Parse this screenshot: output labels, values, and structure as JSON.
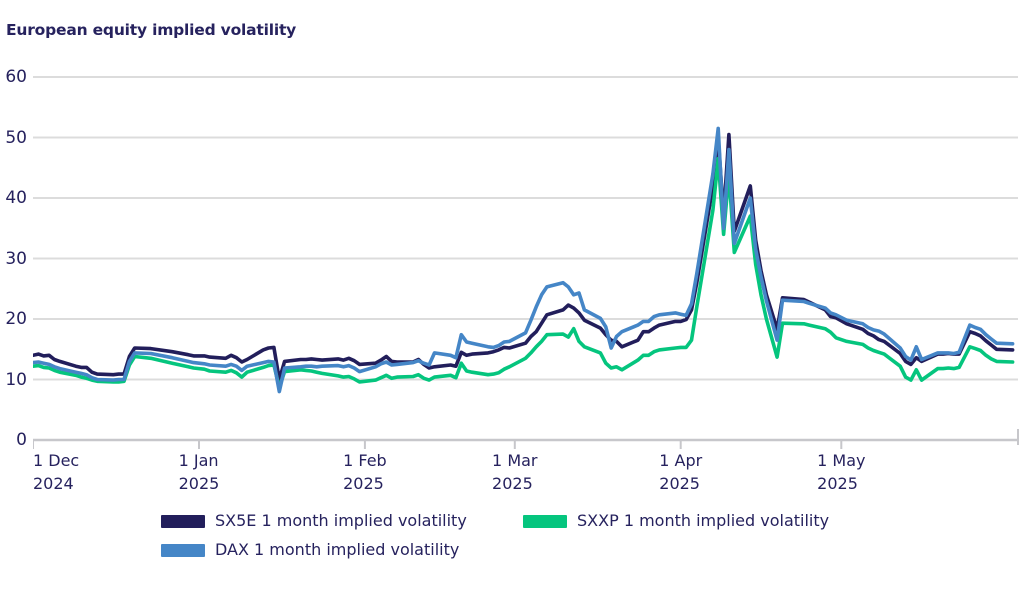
{
  "title": "European equity implied volatility",
  "chart_data": {
    "type": "line",
    "title": "European equity implied volatility",
    "x_unit": "days since 1 Dec 2024",
    "x_domain": [
      0,
      184
    ],
    "y_domain": [
      0,
      60
    ],
    "y_ticks": [
      0,
      10,
      20,
      30,
      40,
      50,
      60
    ],
    "x_ticks": [
      {
        "label": "1 Dec",
        "year": "2024",
        "day": 0
      },
      {
        "label": "1 Jan",
        "year": "2025",
        "day": 31
      },
      {
        "label": "1 Feb",
        "year": "2025",
        "day": 62
      },
      {
        "label": "1 Mar",
        "year": "2025",
        "day": 90
      },
      {
        "label": "1 Apr",
        "year": "2025",
        "day": 121
      },
      {
        "label": "1 May",
        "year": "2025",
        "day": 151
      }
    ],
    "grid": true,
    "legend_position": "bottom",
    "colors": {
      "grid": "#dcdcdc",
      "axis": "#c7c7cb",
      "text": "#26225e"
    },
    "x": [
      0,
      1,
      2,
      3,
      4,
      5,
      8,
      9,
      10,
      11,
      12,
      15,
      16,
      17,
      18,
      19,
      22,
      26,
      29,
      30,
      32,
      33,
      36,
      37,
      38,
      39,
      40,
      43,
      44,
      45,
      46,
      47,
      50,
      51,
      52,
      53,
      54,
      57,
      58,
      59,
      60,
      61,
      64,
      65,
      66,
      67,
      68,
      71,
      72,
      73,
      74,
      75,
      78,
      79,
      80,
      81,
      82,
      85,
      86,
      87,
      88,
      89,
      92,
      93,
      94,
      95,
      96,
      99,
      100,
      101,
      102,
      103,
      106,
      107,
      108,
      109,
      110,
      113,
      114,
      115,
      116,
      117,
      120,
      121,
      122,
      123,
      124,
      127,
      128,
      129,
      130,
      131,
      134,
      135,
      136,
      137,
      139,
      140,
      144,
      145,
      148,
      149,
      150,
      152,
      155,
      156,
      157,
      158,
      159,
      162,
      163,
      164,
      165,
      166,
      169,
      170,
      171,
      172,
      173,
      175,
      176,
      177,
      178,
      179,
      180,
      183
    ],
    "series": [
      {
        "name": "SX5E",
        "label": "SX5E 1 month implied volatility",
        "color": "#221e5b",
        "values": [
          14.0,
          14.2,
          13.9,
          14.0,
          13.3,
          13.0,
          12.2,
          12.0,
          12.0,
          11.2,
          10.9,
          10.8,
          10.9,
          10.9,
          13.8,
          15.2,
          15.1,
          14.6,
          14.1,
          13.9,
          13.9,
          13.7,
          13.5,
          14.0,
          13.6,
          12.9,
          13.3,
          14.9,
          15.2,
          15.3,
          10.0,
          13.0,
          13.3,
          13.3,
          13.4,
          13.3,
          13.2,
          13.4,
          13.2,
          13.5,
          13.1,
          12.5,
          12.7,
          13.2,
          13.8,
          13.0,
          12.9,
          12.9,
          13.3,
          12.5,
          11.9,
          12.1,
          12.4,
          12.2,
          14.5,
          14.0,
          14.2,
          14.4,
          14.6,
          14.9,
          15.3,
          15.2,
          16.0,
          17.1,
          17.9,
          19.3,
          20.7,
          21.5,
          22.3,
          21.8,
          21.0,
          19.8,
          18.5,
          17.4,
          16.5,
          16.3,
          15.4,
          16.5,
          17.9,
          17.9,
          18.5,
          19.0,
          19.6,
          19.6,
          19.9,
          21.5,
          26.0,
          42.0,
          50.0,
          37.0,
          50.5,
          34.5,
          42.0,
          33.0,
          28.0,
          24.0,
          18.3,
          23.5,
          23.2,
          22.8,
          21.5,
          20.4,
          20.2,
          19.2,
          18.3,
          17.6,
          17.2,
          16.6,
          16.3,
          14.3,
          13.0,
          12.5,
          13.6,
          13.0,
          14.2,
          14.2,
          14.3,
          14.2,
          14.2,
          17.9,
          17.6,
          17.2,
          16.4,
          15.7,
          15.0,
          14.9
        ]
      },
      {
        "name": "SXXP",
        "label": "SXXP 1 month implied volatility",
        "color": "#05c57e",
        "values": [
          12.2,
          12.3,
          12.0,
          11.9,
          11.5,
          11.2,
          10.7,
          10.4,
          10.2,
          9.9,
          9.7,
          9.6,
          9.6,
          9.7,
          12.4,
          13.8,
          13.5,
          12.7,
          12.1,
          11.9,
          11.7,
          11.4,
          11.2,
          11.5,
          11.1,
          10.4,
          11.2,
          12.0,
          12.3,
          12.4,
          8.7,
          11.3,
          11.6,
          11.5,
          11.4,
          11.2,
          11.0,
          10.6,
          10.4,
          10.5,
          10.1,
          9.6,
          9.9,
          10.3,
          10.7,
          10.2,
          10.4,
          10.5,
          10.8,
          10.2,
          9.9,
          10.4,
          10.7,
          10.3,
          12.7,
          11.4,
          11.2,
          10.8,
          10.9,
          11.1,
          11.7,
          12.1,
          13.5,
          14.4,
          15.4,
          16.3,
          17.4,
          17.5,
          17.0,
          18.4,
          16.3,
          15.4,
          14.4,
          12.7,
          11.9,
          12.1,
          11.6,
          13.2,
          14.0,
          14.0,
          14.6,
          14.9,
          15.2,
          15.3,
          15.3,
          16.5,
          22.0,
          38.0,
          46.5,
          34.0,
          44.0,
          31.0,
          37.0,
          29.0,
          24.0,
          20.0,
          13.7,
          19.3,
          19.2,
          19.0,
          18.4,
          17.8,
          16.9,
          16.3,
          15.8,
          15.2,
          14.8,
          14.5,
          14.2,
          12.2,
          10.4,
          9.9,
          11.6,
          9.9,
          11.8,
          11.8,
          11.9,
          11.8,
          12.0,
          15.4,
          15.1,
          14.8,
          14.0,
          13.4,
          13.0,
          12.9
        ]
      },
      {
        "name": "DAX",
        "label": "DAX 1 month implied volatility",
        "color": "#4586c7",
        "values": [
          12.8,
          12.9,
          12.7,
          12.5,
          12.1,
          11.8,
          11.2,
          11.0,
          10.8,
          10.3,
          10.0,
          9.9,
          10.0,
          10.0,
          13.0,
          14.4,
          14.3,
          13.6,
          13.0,
          12.8,
          12.6,
          12.4,
          12.2,
          12.5,
          12.2,
          11.5,
          12.2,
          12.8,
          13.0,
          12.9,
          8.0,
          11.9,
          12.1,
          12.2,
          12.2,
          12.1,
          12.2,
          12.3,
          12.1,
          12.3,
          11.9,
          11.3,
          12.1,
          12.6,
          12.9,
          12.4,
          12.5,
          12.8,
          13.1,
          12.7,
          12.4,
          14.4,
          14.0,
          13.6,
          17.4,
          16.2,
          16.0,
          15.4,
          15.3,
          15.6,
          16.2,
          16.3,
          17.7,
          19.8,
          22.0,
          24.0,
          25.3,
          26.0,
          25.3,
          24.0,
          24.3,
          21.5,
          20.1,
          18.7,
          15.2,
          17.1,
          17.9,
          19.0,
          19.6,
          19.6,
          20.4,
          20.7,
          21.0,
          20.8,
          20.6,
          22.5,
          27.5,
          44.0,
          51.5,
          35.0,
          48.0,
          32.5,
          40.0,
          31.5,
          27.0,
          23.0,
          16.5,
          23.1,
          22.9,
          22.6,
          21.8,
          21.0,
          20.7,
          19.8,
          19.2,
          18.6,
          18.2,
          18.0,
          17.5,
          15.2,
          13.8,
          13.2,
          15.4,
          13.3,
          14.4,
          14.4,
          14.4,
          14.3,
          14.5,
          19.0,
          18.6,
          18.3,
          17.4,
          16.7,
          16.0,
          15.9
        ]
      }
    ]
  }
}
